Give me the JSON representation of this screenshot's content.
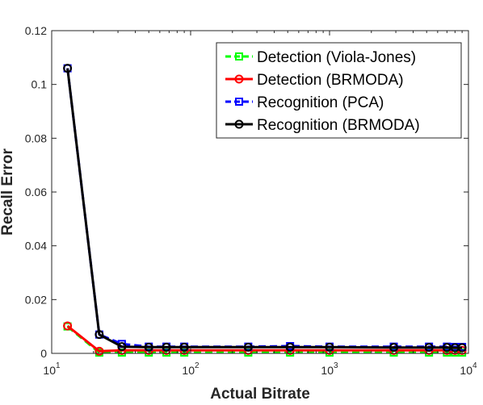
{
  "chart_data": {
    "type": "line",
    "x_scale": "log",
    "xlim": [
      10,
      10000
    ],
    "ylim": [
      0,
      0.12
    ],
    "xlabel": "Actual Bitrate",
    "ylabel": "Recall Error",
    "x_ticks": [
      {
        "value": 10,
        "base": "10",
        "exp": "1"
      },
      {
        "value": 100,
        "base": "10",
        "exp": "2"
      },
      {
        "value": 1000,
        "base": "10",
        "exp": "3"
      },
      {
        "value": 10000,
        "base": "10",
        "exp": "4"
      }
    ],
    "y_ticks": [
      {
        "value": 0,
        "label": "0"
      },
      {
        "value": 0.02,
        "label": "0.02"
      },
      {
        "value": 0.04,
        "label": "0.04"
      },
      {
        "value": 0.06,
        "label": "0.06"
      },
      {
        "value": 0.08,
        "label": "0.08"
      },
      {
        "value": 0.1,
        "label": "0.1"
      },
      {
        "value": 0.12,
        "label": "0.12"
      }
    ],
    "grid": false,
    "legend_position": "top-right",
    "series": [
      {
        "name": "Detection (Viola-Jones)",
        "color": "#00ff00",
        "line_style": "dashed",
        "marker": "square",
        "x": [
          13,
          22,
          32,
          50,
          67,
          90,
          260,
          520,
          1000,
          2900,
          5200,
          7000,
          8000,
          9000
        ],
        "y": [
          0.01,
          0.0003,
          0.0003,
          0.0003,
          0.0003,
          0.0003,
          0.0003,
          0.0003,
          0.0003,
          0.0003,
          0.0003,
          0.0003,
          0.0003,
          0.0003
        ]
      },
      {
        "name": "Detection (BRMODA)",
        "color": "#ff0000",
        "line_style": "solid",
        "marker": "circle",
        "x": [
          13,
          22,
          32,
          50,
          67,
          90,
          260,
          520,
          1000,
          2900,
          5200,
          7000,
          8000,
          9000
        ],
        "y": [
          0.0102,
          0.0008,
          0.0011,
          0.0011,
          0.0011,
          0.0011,
          0.0011,
          0.0011,
          0.0011,
          0.0011,
          0.0011,
          0.0011,
          0.0011,
          0.0011
        ]
      },
      {
        "name": "Recognition (PCA)",
        "color": "#0000ff",
        "line_style": "dashed",
        "marker": "square",
        "x": [
          13,
          22,
          32,
          50,
          67,
          90,
          260,
          520,
          1000,
          2900,
          5200,
          7000,
          8000,
          9000
        ],
        "y": [
          0.106,
          0.007,
          0.0035,
          0.0025,
          0.0025,
          0.0025,
          0.0025,
          0.0027,
          0.0025,
          0.0025,
          0.0025,
          0.0025,
          0.0024,
          0.0024
        ]
      },
      {
        "name": "Recognition (BRMODA)",
        "color": "#000000",
        "line_style": "solid",
        "marker": "circle",
        "x": [
          13,
          22,
          32,
          50,
          67,
          90,
          260,
          520,
          1000,
          2900,
          5200,
          7000,
          8000,
          9000
        ],
        "y": [
          0.106,
          0.007,
          0.0025,
          0.0023,
          0.0023,
          0.0023,
          0.0023,
          0.0023,
          0.0023,
          0.0022,
          0.0022,
          0.0022,
          0.0021,
          0.0021
        ]
      }
    ]
  }
}
